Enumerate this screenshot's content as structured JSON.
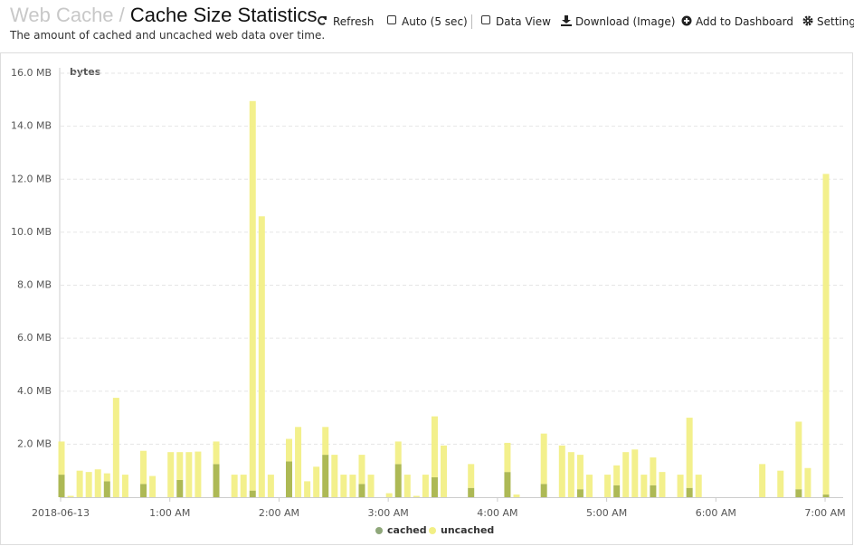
{
  "header": {
    "breadcrumb": "Web Cache /",
    "title": "Cache Size Statistics",
    "subtitle": "The amount of cached and uncached web data over time."
  },
  "toolbar": [
    "Refresh",
    "Auto (5 sec)",
    "Data View",
    "Download (Image)",
    "Add to Dashboard",
    "Settings"
  ],
  "chart_data": {
    "type": "stacked_bar",
    "y_label": "bytes",
    "categories": [
      "2018-06-13",
      null,
      null,
      null,
      null,
      null,
      null,
      null,
      null,
      null,
      null,
      null,
      "1:00 AM",
      null,
      null,
      null,
      null,
      null,
      null,
      null,
      null,
      null,
      null,
      null,
      "2:00 AM",
      null,
      null,
      null,
      null,
      null,
      null,
      null,
      null,
      null,
      null,
      null,
      "3:00 AM",
      null,
      null,
      null,
      null,
      null,
      null,
      null,
      null,
      null,
      null,
      null,
      "4:00 AM",
      null,
      null,
      null,
      null,
      null,
      null,
      null,
      null,
      null,
      null,
      null,
      "5:00 AM",
      null,
      null,
      null,
      null,
      null,
      null,
      null,
      null,
      null,
      null,
      null,
      "6:00 AM",
      null,
      null,
      null,
      null,
      null,
      null,
      null,
      null,
      null,
      null,
      null,
      "7:00 AM"
    ],
    "series": [
      {
        "name": "cached",
        "color": "#a9b54c",
        "values": [
          0.85,
          0,
          0,
          0,
          0,
          0.6,
          0,
          0,
          0,
          0.5,
          0,
          0,
          0,
          0.65,
          0,
          0,
          0,
          1.25,
          0,
          0,
          0,
          0.25,
          0,
          0,
          0,
          1.35,
          0,
          0,
          0,
          1.6,
          0,
          0,
          0,
          0.5,
          0,
          0,
          0,
          1.25,
          0,
          0,
          0,
          0.75,
          0,
          0,
          0,
          0.35,
          0,
          0,
          0,
          0.95,
          0,
          0,
          0,
          0.5,
          0,
          0,
          0,
          0.3,
          0,
          0,
          0,
          0.45,
          0,
          0,
          0,
          0.45,
          0,
          0,
          0,
          0.35,
          0,
          0,
          0,
          0,
          0,
          0,
          0,
          0,
          0,
          0,
          0,
          0.3,
          0,
          0,
          0.1
        ]
      },
      {
        "name": "uncached",
        "color": "#f2ef86",
        "values": [
          1.25,
          0.05,
          1.0,
          0.95,
          1.05,
          0.3,
          3.75,
          0.85,
          0,
          1.25,
          0.8,
          0,
          1.7,
          1.05,
          1.7,
          1.72,
          0,
          0.85,
          0,
          0.85,
          0.85,
          14.7,
          10.6,
          0.85,
          0,
          0.85,
          2.65,
          0.6,
          1.15,
          1.05,
          1.6,
          0.85,
          0.85,
          1.1,
          0.85,
          0,
          0.15,
          0.85,
          0.85,
          0.05,
          0.85,
          2.3,
          1.95,
          0,
          0,
          0.9,
          0,
          0,
          0,
          1.1,
          0.1,
          0,
          0,
          1.9,
          0,
          1.95,
          1.7,
          1.3,
          0.85,
          0,
          0.85,
          0.75,
          1.7,
          1.8,
          0.85,
          1.05,
          0.95,
          0,
          0.85,
          2.65,
          0.85,
          0,
          0,
          0,
          0,
          0,
          0,
          1.25,
          0,
          1.0,
          0,
          2.55,
          1.1,
          0,
          12.1
        ]
      }
    ],
    "ylim": [
      0,
      16
    ],
    "yticks": [
      {
        "value": 2,
        "label": "2.0 MB"
      },
      {
        "value": 4,
        "label": "4.0 MB"
      },
      {
        "value": 6,
        "label": "6.0 MB"
      },
      {
        "value": 8,
        "label": "8.0 MB"
      },
      {
        "value": 10,
        "label": "10.0 MB"
      },
      {
        "value": 12,
        "label": "12.0 MB"
      },
      {
        "value": 14,
        "label": "14.0 MB"
      },
      {
        "value": 16,
        "label": "16.0 MB"
      }
    ],
    "grid": true
  }
}
